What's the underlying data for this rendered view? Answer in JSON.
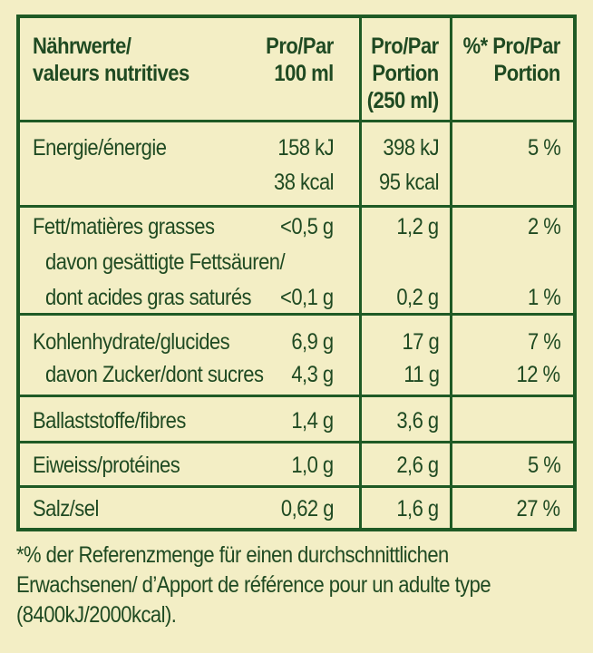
{
  "header": {
    "col1": [
      "Nährwerte/",
      "valeurs nutritives"
    ],
    "col2": [
      "Pro/Par",
      "100 ml"
    ],
    "col3": [
      "Pro/Par",
      "Portion",
      "(250 ml)"
    ],
    "col4": [
      "%* Pro/Par",
      "Portion"
    ]
  },
  "rows": {
    "energy": {
      "label": "Energie/énergie",
      "v100a": "158 kJ",
      "v100b": "38 kcal",
      "vpa": "398 kJ",
      "vpb": "95 kcal",
      "pct": "5 %"
    },
    "fat": {
      "label": "Fett/matières grasses",
      "v100": "<0,5 g",
      "vp": "1,2 g",
      "pct": "2 %",
      "sub1": "davon gesättigte Fettsäuren/",
      "sub2": "dont acides gras saturés",
      "sub_v100": "<0,1 g",
      "sub_vp": "0,2 g",
      "sub_pct": "1 %"
    },
    "carbs": {
      "label": "Kohlenhydrate/glucides",
      "v100": "6,9 g",
      "vp": "17 g",
      "pct": "7 %",
      "sub": "davon Zucker/dont sucres",
      "sub_v100": "4,3 g",
      "sub_vp": "11 g",
      "sub_pct": "12 %"
    },
    "fibre": {
      "label": "Ballaststoffe/fibres",
      "v100": "1,4 g",
      "vp": "3,6 g",
      "pct": ""
    },
    "protein": {
      "label": "Eiweiss/protéines",
      "v100": "1,0 g",
      "vp": "2,6 g",
      "pct": "5 %"
    },
    "salt": {
      "label": "Salz/sel",
      "v100": "0,62 g",
      "vp": "1,6 g",
      "pct": "27 %"
    }
  },
  "footnote": [
    "*% der Referenzmenge für einen durchschnittlichen",
    "Erwachsenen/ d’Apport de référence pour un adulte type",
    "(8400kJ/2000kcal)."
  ]
}
